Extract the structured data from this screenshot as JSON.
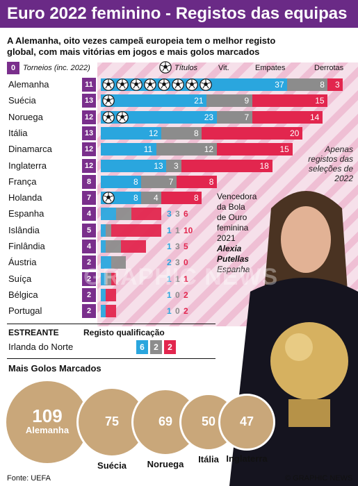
{
  "header": {
    "title": "Euro 2022 feminino - Registos das equipas",
    "subtitle": "A Alemanha, oito vezes campeã europeia tem o melhor registo global, com mais vitórias em jogos e mais golos marcados"
  },
  "legend": {
    "tournaments_box": "0",
    "tournaments": "Torneios (inc. 2022)",
    "titles": "Títulos",
    "wins": "Vit.",
    "draws": "Empates",
    "losses": "Derrotas"
  },
  "colors": {
    "wins": "#2aa6de",
    "draws": "#8c8c8c",
    "losses": "#e2264e",
    "tournaments": "#7a2f8c",
    "header": "#6a2a86",
    "gold": "#c9a77a"
  },
  "chart_data": {
    "type": "bar",
    "categories": [
      "Alemanha",
      "Suécia",
      "Noruega",
      "Itália",
      "Dinamarca",
      "Inglaterra",
      "França",
      "Holanda",
      "Espanha",
      "Islândia",
      "Finlândia",
      "Áustria",
      "Suíça",
      "Bélgica",
      "Portugal"
    ],
    "tournaments": [
      11,
      13,
      12,
      13,
      12,
      12,
      8,
      7,
      4,
      5,
      4,
      2,
      2,
      2,
      2
    ],
    "titles": [
      8,
      1,
      2,
      0,
      0,
      0,
      0,
      1,
      0,
      0,
      0,
      0,
      0,
      0,
      0
    ],
    "series": [
      {
        "name": "Vit.",
        "values": [
          37,
          21,
          23,
          12,
          11,
          13,
          8,
          8,
          3,
          1,
          1,
          2,
          1,
          1,
          1
        ]
      },
      {
        "name": "Empates",
        "values": [
          8,
          9,
          7,
          8,
          12,
          3,
          7,
          4,
          3,
          1,
          3,
          3,
          1,
          0,
          0
        ]
      },
      {
        "name": "Derrotas",
        "values": [
          3,
          15,
          14,
          20,
          15,
          18,
          8,
          8,
          6,
          10,
          5,
          0,
          1,
          2,
          2
        ]
      }
    ]
  },
  "notes": {
    "best_records": "Apenas registos das seleções de 2022",
    "winner_line1": "Vencedora",
    "winner_line2": "da Bola",
    "winner_line3": "de Ouro",
    "winner_line4": "feminina",
    "winner_line5": "2021",
    "winner_name1": "Alexia",
    "winner_name2": "Putellas",
    "winner_country": "Espanha"
  },
  "debutant": {
    "heading": "ESTREANTE",
    "record_heading": "Registo qualificação",
    "team": "Irlanda do Norte",
    "wins": "6",
    "draws": "2",
    "losses": "2"
  },
  "goals": {
    "heading": "Mais Golos Marcados",
    "items": [
      {
        "team": "Alemanha",
        "goals": "109"
      },
      {
        "team": "Suécia",
        "goals": "75"
      },
      {
        "team": "Noruega",
        "goals": "69"
      },
      {
        "team": "Itália",
        "goals": "50"
      },
      {
        "team": "Inglaterra",
        "goals": "47"
      }
    ]
  },
  "footer": {
    "source": "Fonte: UEFA",
    "credit": "© GRAPHIC NEWS"
  },
  "watermark": "GRAPHIC NEWS"
}
